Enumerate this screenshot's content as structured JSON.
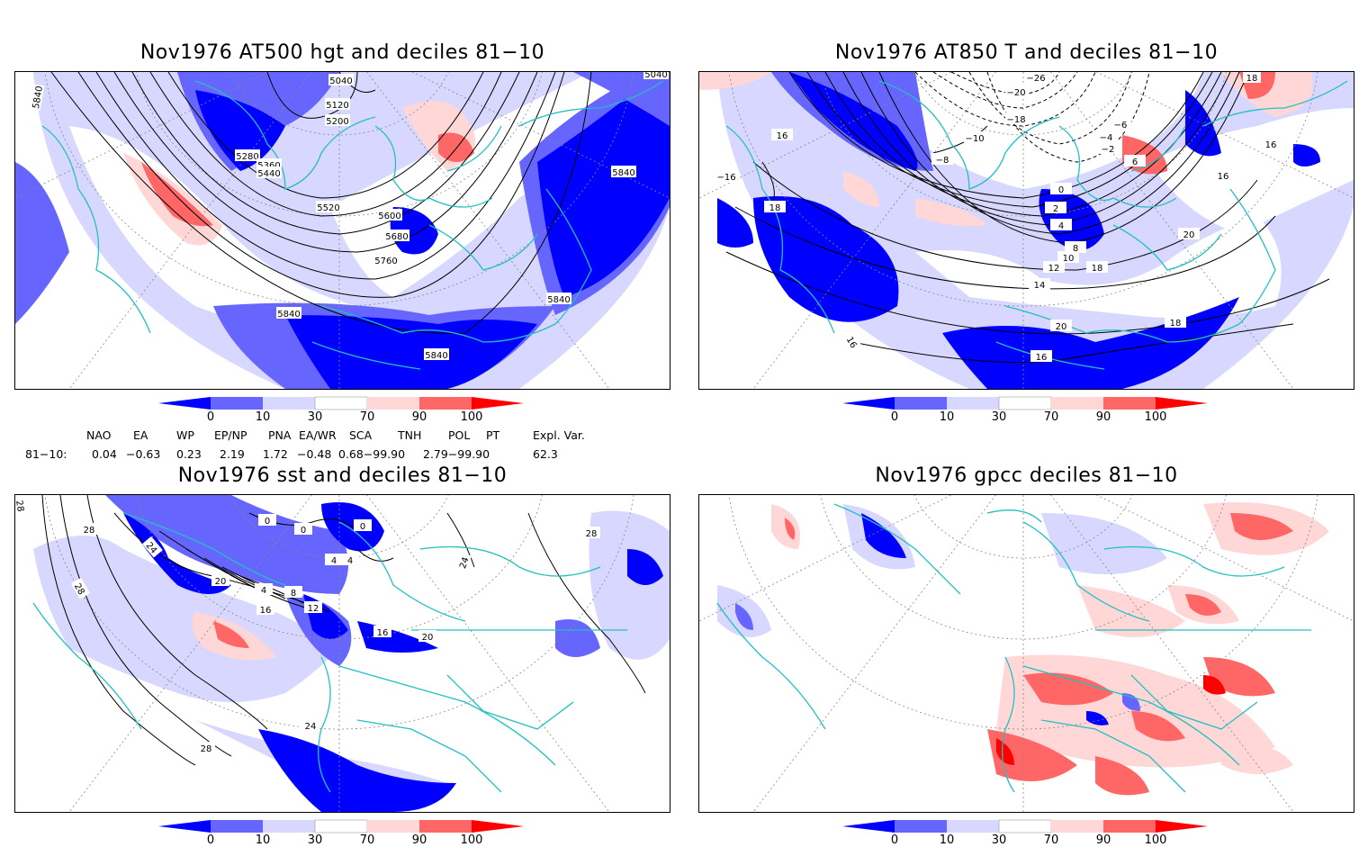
{
  "panels": [
    {
      "id": "tl",
      "title": "Nov1976 AT500 hgt and deciles 81−10",
      "contour_labels": [
        "5040",
        "5040",
        "5120",
        "5200",
        "5280",
        "5360",
        "5440",
        "5520",
        "5600",
        "5680",
        "5760",
        "5840",
        "5840",
        "5840",
        "5840",
        "5840"
      ]
    },
    {
      "id": "tr",
      "title": "Nov1976 AT850 T and deciles 81−10",
      "contour_labels": [
        "−26",
        "−20",
        "−18",
        "−10",
        "−8",
        "−6",
        "−4",
        "−2",
        "0",
        "2",
        "4",
        "6",
        "8",
        "10",
        "12",
        "14",
        "16",
        "16",
        "16",
        "16",
        "16",
        "18",
        "18",
        "18",
        "20",
        "20"
      ]
    },
    {
      "id": "bl",
      "title": "Nov1976 sst and deciles 81−10",
      "contour_labels": [
        "28",
        "28",
        "28",
        "24",
        "20",
        "16",
        "12",
        "8",
        "4",
        "4",
        "4",
        "0",
        "0",
        "0",
        "16",
        "20",
        "24",
        "28",
        "28",
        "24"
      ]
    },
    {
      "id": "br",
      "title": "Nov1976 gpcc deciles 81−10",
      "contour_labels": []
    }
  ],
  "colorbar": {
    "ticks": [
      "0",
      "10",
      "30",
      "70",
      "90",
      "100"
    ],
    "colors": [
      "#0000ff",
      "#6666ff",
      "#d7d7ff",
      "#ffffff",
      "#ffd7d7",
      "#ff6666",
      "#ff0000"
    ]
  },
  "indices": {
    "headers": [
      "NAO",
      "EA",
      "WP",
      "EP/NP",
      "PNA",
      "EA/WR",
      "SCA",
      "TNH",
      "POL",
      "PT",
      "Expl. Var."
    ],
    "row_label": "81−10:",
    "values": [
      "0.04",
      "−0.63",
      "0.23",
      "2.19",
      "1.72",
      "−0.48",
      "0.68−99.90",
      "2.79−99.90",
      "62.3"
    ]
  },
  "colors": {
    "coast": "#22c0c0",
    "contour": "#000000",
    "grid": "#888888"
  }
}
